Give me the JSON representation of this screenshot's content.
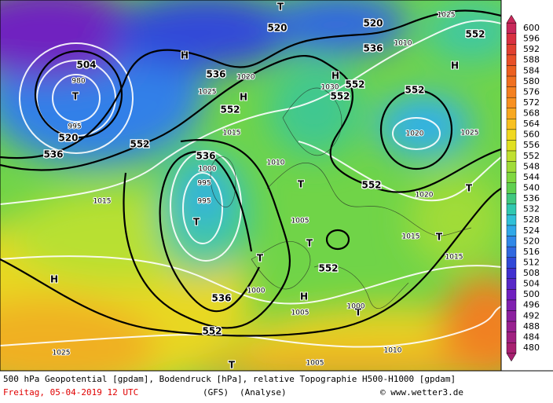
{
  "caption": {
    "line1": "500 hPa Geopotential [gpdam], Bodendruck [hPa], relative Topographie H500-H1000 [gpdam]",
    "date": "Freitag, 05-04-2019  12 UTC",
    "model": "(GFS)",
    "mode": "(Analyse)",
    "credit": "© www.wetter3.de"
  },
  "colorbar": {
    "ticks": [
      600,
      596,
      592,
      588,
      584,
      580,
      576,
      572,
      568,
      564,
      560,
      556,
      552,
      548,
      544,
      540,
      536,
      532,
      528,
      524,
      520,
      516,
      512,
      508,
      504,
      500,
      496,
      492,
      488,
      484,
      480
    ],
    "colors": [
      "#c8285a",
      "#d83040",
      "#e04030",
      "#e85028",
      "#ec6020",
      "#f07020",
      "#f48020",
      "#f89020",
      "#f8a820",
      "#f8c020",
      "#f0d820",
      "#e0e020",
      "#c0e030",
      "#a0dc38",
      "#80d840",
      "#60d050",
      "#40c880",
      "#30c8b0",
      "#30c0d8",
      "#30a8e8",
      "#3088e8",
      "#3068e0",
      "#3048d8",
      "#4030d0",
      "#5828c8",
      "#7020c0",
      "#8020b0",
      "#8c20a0",
      "#982090",
      "#a02080",
      "#a82070"
    ]
  },
  "geopotential_labels": [
    "504",
    "520",
    "536",
    "552",
    "536",
    "552",
    "536",
    "520",
    "536",
    "520",
    "552",
    "552",
    "552",
    "552",
    "552",
    "552",
    "536",
    "552"
  ],
  "pressure_centers": [
    "T",
    "H",
    "T",
    "H",
    "H",
    "H",
    "T",
    "T",
    "T",
    "T",
    "T",
    "T",
    "H",
    "T",
    "H",
    "T"
  ],
  "isobar_labels": [
    "980",
    "995",
    "1015",
    "1025",
    "1030",
    "1020",
    "1025",
    "1025",
    "1020",
    "1015",
    "1015",
    "1005",
    "1000",
    "1005",
    "1000",
    "1010",
    "1005",
    "995",
    "995",
    "1000",
    "1015",
    "1010",
    "1020",
    "1025",
    "1010"
  ]
}
